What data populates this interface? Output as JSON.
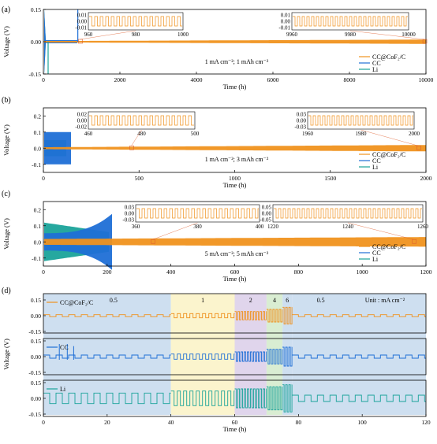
{
  "colors": {
    "cc_cof": "#f0921e",
    "cc": "#1f6fd6",
    "li": "#1aa39a",
    "bg_0_5": "#c9dcee",
    "bg_1": "#fbf3c8",
    "bg_2": "#ddd0ea",
    "bg_4": "#d5ebcd",
    "bg_6": "#c9dcee"
  },
  "watermark": "",
  "chart_data": [
    {
      "type": "line",
      "panel": "(a)",
      "xlabel": "Time (h)",
      "ylabel": "Voltage (V)",
      "xlim": [
        0,
        10000
      ],
      "ylim": [
        -0.15,
        0.15
      ],
      "xticks": [
        "0",
        "2000",
        "4000",
        "6000",
        "8000",
        "10000"
      ],
      "yticks": [
        "0.15",
        "0.00",
        "-0.15"
      ],
      "annotation": "1 mA cm⁻²; 1 mAh cm⁻²",
      "legend": [
        "CC@CoF₂/C",
        "CC",
        "Li"
      ],
      "legend_position": "bottom-right",
      "series": [
        {
          "name": "CC@CoF₂/C",
          "color": "#f0921e",
          "end_time": 10000,
          "amplitude": 0.01
        },
        {
          "name": "CC",
          "color": "#1f6fd6",
          "end_time": 900,
          "amplitude": 0.15
        },
        {
          "name": "Li",
          "color": "#1aa39a",
          "end_time": 80,
          "amplitude": 0.15
        }
      ],
      "insets": [
        {
          "xlim": [
            960,
            1000
          ],
          "xticks": [
            "960",
            "980",
            "1000"
          ],
          "yticks": [
            "0.01",
            "0.00",
            "-0.01"
          ]
        },
        {
          "xlim": [
            9960,
            10000
          ],
          "xticks": [
            "9960",
            "9980",
            "10000"
          ],
          "yticks": [
            "0.01",
            "0.00",
            "-0.01"
          ]
        }
      ]
    },
    {
      "type": "line",
      "panel": "(b)",
      "xlabel": "Time (h)",
      "ylabel": "Voltage (V)",
      "xlim": [
        0,
        2000
      ],
      "ylim": [
        -0.15,
        0.25
      ],
      "xticks": [
        "0",
        "500",
        "1000",
        "1500",
        "2000"
      ],
      "yticks": [
        "0.2",
        "0.1",
        "0.0",
        "-0.1"
      ],
      "annotation": "1 mA cm⁻²; 3 mAh cm⁻²",
      "legend": [
        "CC@CoF₂/C",
        "CC",
        "Li"
      ],
      "legend_position": "bottom-right",
      "series": [
        {
          "name": "CC@CoF₂/C",
          "color": "#f0921e",
          "end_time": 2000,
          "amplitude": 0.02
        },
        {
          "name": "CC",
          "color": "#1f6fd6",
          "end_time": 150,
          "amplitude": 0.1
        },
        {
          "name": "Li",
          "color": "#1aa39a",
          "end_time": 120,
          "amplitude": 0.05
        }
      ],
      "insets": [
        {
          "xlim": [
            460,
            500
          ],
          "xticks": [
            "460",
            "480",
            "500"
          ],
          "yticks": [
            "0.02",
            "0.00",
            "-0.02"
          ]
        },
        {
          "xlim": [
            1960,
            2000
          ],
          "xticks": [
            "1960",
            "1980",
            "2000"
          ],
          "yticks": [
            "0.03",
            "0.00",
            "-0.03"
          ]
        }
      ]
    },
    {
      "type": "line",
      "panel": "(c)",
      "xlabel": "Time (h)",
      "ylabel": "Voltage (V)",
      "xlim": [
        0,
        1260
      ],
      "ylim": [
        -0.15,
        0.25
      ],
      "xticks": [
        "0",
        "200",
        "400",
        "600",
        "800",
        "1000",
        "1200"
      ],
      "yticks": [
        "0.2",
        "0.1",
        "0.0",
        "-0.1"
      ],
      "annotation": "5 mA cm⁻²; 5 mAh cm⁻²",
      "legend": [
        "CC@CoF₂/C",
        "CC",
        "Li"
      ],
      "legend_position": "bottom-right",
      "series": [
        {
          "name": "CC@CoF₂/C",
          "color": "#f0921e",
          "end_time": 1260,
          "amplitude": 0.03
        },
        {
          "name": "CC",
          "color": "#1f6fd6",
          "end_time": 230,
          "amplitude": 0.18
        },
        {
          "name": "Li",
          "color": "#1aa39a",
          "end_time": 220,
          "amplitude": 0.12
        }
      ],
      "insets": [
        {
          "xlim": [
            360,
            400
          ],
          "xticks": [
            "360",
            "380",
            "400"
          ],
          "yticks": [
            "0.03",
            "0.00",
            "-0.03"
          ]
        },
        {
          "xlim": [
            1220,
            1260
          ],
          "xticks": [
            "1220",
            "1240",
            "1260"
          ],
          "yticks": [
            "0.05",
            "0.00",
            "-0.05"
          ]
        }
      ]
    },
    {
      "type": "line",
      "panel": "(d)",
      "xlabel": "Time (h)",
      "ylabel": "Voltage (V)",
      "xlim": [
        0,
        120
      ],
      "xticks": [
        "0",
        "20",
        "40",
        "60",
        "80",
        "100",
        "120"
      ],
      "yticks": [
        "0.15",
        "0.00",
        "-0.15"
      ],
      "unit_label": "Unit : mA cm⁻²",
      "rate_regions": [
        {
          "label": "0.5",
          "start": 0,
          "end": 40
        },
        {
          "label": "1",
          "start": 40,
          "end": 60
        },
        {
          "label": "2",
          "start": 60,
          "end": 70
        },
        {
          "label": "4",
          "start": 70,
          "end": 75
        },
        {
          "label": "6",
          "start": 75,
          "end": 78
        },
        {
          "label": "0.5",
          "start": 78,
          "end": 120
        }
      ],
      "subplots": [
        {
          "name": "CC@CoF₂/C",
          "color": "#f0921e",
          "amplitudes": [
            0.01,
            0.02,
            0.04,
            0.06,
            0.08,
            0.01
          ]
        },
        {
          "name": "CC",
          "color": "#1f6fd6",
          "amplitudes": [
            0.015,
            0.025,
            0.045,
            0.07,
            0.09,
            0.015
          ]
        },
        {
          "name": "Li",
          "color": "#1aa39a",
          "amplitudes": [
            0.05,
            0.07,
            0.09,
            0.11,
            0.13,
            0.03
          ]
        }
      ]
    }
  ]
}
